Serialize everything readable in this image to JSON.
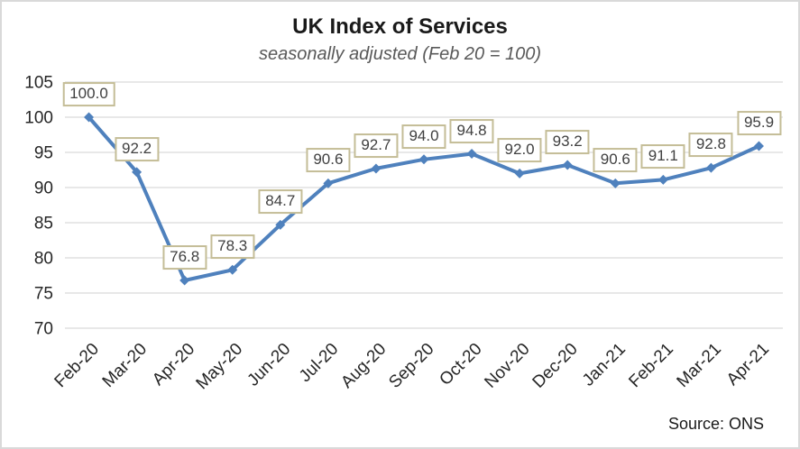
{
  "header": {
    "title": "UK Index of Services",
    "subtitle": "seasonally adjusted (Feb 20 = 100)"
  },
  "footer": {
    "source": "Source: ONS"
  },
  "chart_data": {
    "type": "line",
    "title": "UK Index of Services",
    "subtitle": "seasonally adjusted (Feb 20 = 100)",
    "categories": [
      "Feb-20",
      "Mar-20",
      "Apr-20",
      "May-20",
      "Jun-20",
      "Jul-20",
      "Aug-20",
      "Sep-20",
      "Oct-20",
      "Nov-20",
      "Dec-20",
      "Jan-21",
      "Feb-21",
      "Mar-21",
      "Apr-21"
    ],
    "series": [
      {
        "name": "UK Index of Services",
        "values": [
          100.0,
          92.2,
          76.8,
          78.3,
          84.7,
          90.6,
          92.7,
          94.0,
          94.8,
          92.0,
          93.2,
          90.6,
          91.1,
          92.8,
          95.9
        ]
      }
    ],
    "data_labels": [
      "100.0",
      "92.2",
      "76.8",
      "78.3",
      "84.7",
      "90.6",
      "92.7",
      "94.0",
      "94.8",
      "92.0",
      "93.2",
      "90.6",
      "91.1",
      "92.8",
      "95.9"
    ],
    "xlabel": "",
    "ylabel": "",
    "ylim": [
      70,
      105
    ],
    "yticks": [
      70,
      75,
      80,
      85,
      90,
      95,
      100,
      105
    ],
    "grid": true,
    "legend": "none",
    "marker": "diamond",
    "source": "Source: ONS",
    "colors": {
      "line": "#4F81BD",
      "marker": "#4F81BD",
      "label_border": "#C4BD97",
      "label_text": "#404040",
      "gridline": "#D9D9D9",
      "axis_text": "#262626",
      "title_text": "#1a1a1a",
      "subtitle_text": "#595959",
      "frame_border": "#D9D9D9"
    }
  }
}
